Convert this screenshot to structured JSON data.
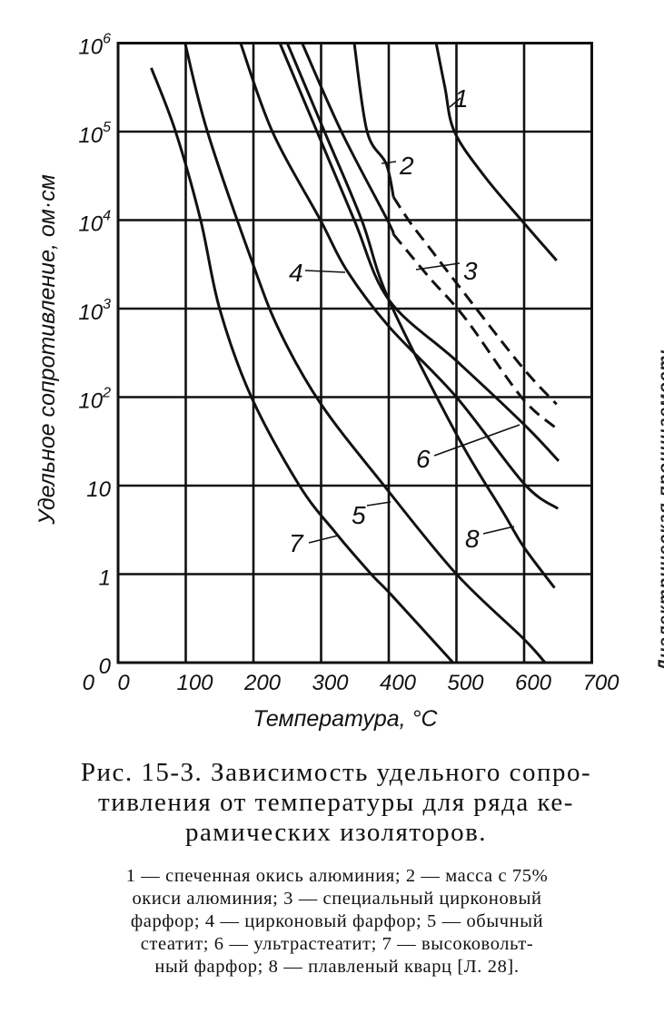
{
  "chart_data": {
    "type": "line",
    "xlabel": "Температура, °С",
    "ylabel": "Удельное сопротивление, ом·см",
    "x_scale": "linear",
    "y_scale": "log",
    "xlim": [
      0,
      700
    ],
    "ylim": [
      0.1,
      1000000
    ],
    "grid": true,
    "x_ticks": [
      {
        "value": 0,
        "label": "0"
      },
      {
        "value": 100,
        "label": "100"
      },
      {
        "value": 200,
        "label": "200"
      },
      {
        "value": 300,
        "label": "300"
      },
      {
        "value": 400,
        "label": "400"
      },
      {
        "value": 500,
        "label": "500"
      },
      {
        "value": 600,
        "label": "600"
      },
      {
        "value": 700,
        "label": "700"
      }
    ],
    "y_ticks": [
      {
        "value": 1000000,
        "base": "10",
        "exp": "6"
      },
      {
        "value": 100000,
        "base": "10",
        "exp": "5"
      },
      {
        "value": 10000,
        "base": "10",
        "exp": "4"
      },
      {
        "value": 1000,
        "base": "10",
        "exp": "3"
      },
      {
        "value": 100,
        "base": "10",
        "exp": "2"
      },
      {
        "value": 10,
        "base": "10",
        "exp": ""
      },
      {
        "value": 1,
        "base": "1",
        "exp": ""
      },
      {
        "value": 0.1,
        "base": "0",
        "exp": ""
      }
    ],
    "series": [
      {
        "label": "1",
        "x": [
          470,
          483,
          497,
          541,
          596,
          648
        ],
        "y": [
          1000000,
          316000,
          100000,
          31600,
          10000,
          3500
        ]
      },
      {
        "label": "2",
        "x": [
          349,
          368,
          396,
          407,
          431,
          459,
          503,
          596,
          648
        ],
        "y": [
          1000000,
          100000,
          43600,
          18200,
          9550,
          5000,
          1820,
          224,
          83
        ],
        "dashed_from_x": 407
      },
      {
        "label": "3",
        "x": [
          272,
          330,
          398,
          407,
          459,
          514,
          596,
          645
        ],
        "y": [
          1000000,
          100000,
          10000,
          6900,
          2290,
          760,
          100,
          46
        ],
        "dashed_from_x": 407
      },
      {
        "label": "4",
        "x": [
          181,
          228,
          299,
          338,
          400,
          500,
          600,
          650
        ],
        "y": [
          1000000,
          100000,
          10000,
          2700,
          630,
          100,
          10.5,
          5.5
        ]
      },
      {
        "label": "5",
        "x": [
          99,
          132,
          198,
          239,
          300,
          393,
          500,
          598,
          631
        ],
        "y": [
          1000000,
          100000,
          3400,
          550,
          83,
          10,
          1,
          0.19,
          0.1
        ]
      },
      {
        "label": "6",
        "x": [
          239,
          294,
          349,
          400,
          500,
          600,
          651
        ],
        "y": [
          1000000,
          100000,
          10000,
          1260,
          257,
          49,
          19
        ]
      },
      {
        "label": "7",
        "x": [
          49,
          85,
          122,
          150,
          197,
          268,
          322,
          374,
          404,
          495
        ],
        "y": [
          525000,
          100000,
          10000,
          1000,
          100,
          10,
          2.9,
          1,
          0.58,
          0.1
        ]
      },
      {
        "label": "8",
        "x": [
          250,
          305,
          360,
          400,
          500,
          569,
          600,
          645
        ],
        "y": [
          1000000,
          100000,
          10000,
          1260,
          38,
          5,
          2,
          0.7
        ]
      }
    ]
  },
  "origin_x_label": "0",
  "side_text": "Диэлектрическая проницаемость",
  "caption": {
    "lines": [
      "Рис. 15-3. Зависимость удельного сопро-",
      "тивления от температуры для ряда ке-",
      "рамических изоляторов."
    ]
  },
  "legend": {
    "lines": [
      "1 — спеченная окись алюминия; 2 — масса с 75%",
      "окиси алюминия; 3 — специальный цирконовый",
      "фарфор; 4 — цирконовый фарфор; 5 — обычный",
      "стеатит; 6 — ультрастеатит; 7 — высоковольт-",
      "ный фарфор; 8 — плавленый кварц [Л. 28]."
    ]
  },
  "colors": {
    "ink": "#111111",
    "paper": "#ffffff"
  }
}
